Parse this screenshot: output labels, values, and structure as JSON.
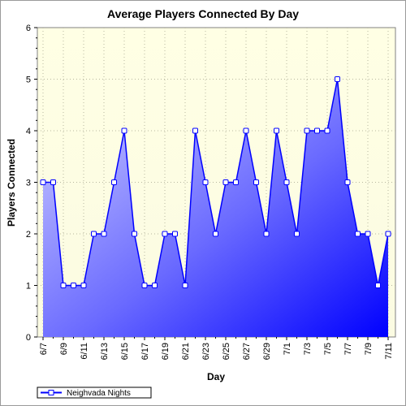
{
  "chart_data": {
    "type": "area",
    "title": "Average Players Connected By Day",
    "xlabel": "Day",
    "ylabel": "Players Connected",
    "ylim": [
      0,
      6
    ],
    "yticks": [
      0,
      1,
      2,
      3,
      4,
      5,
      6
    ],
    "grid": true,
    "legend_position": "bottom-left",
    "x_labels": [
      "6/7",
      "6/9",
      "6/11",
      "6/13",
      "6/15",
      "6/17",
      "6/19",
      "6/21",
      "6/23",
      "6/25",
      "6/27",
      "6/29",
      "7/1",
      "7/3",
      "7/5",
      "7/7",
      "7/9",
      "7/11"
    ],
    "series": [
      {
        "name": "Neighvada Nights",
        "x": [
          "6/7",
          "6/8",
          "6/9",
          "6/10",
          "6/11",
          "6/12",
          "6/13",
          "6/14",
          "6/15",
          "6/16",
          "6/17",
          "6/18",
          "6/19",
          "6/20",
          "6/21",
          "6/22",
          "6/23",
          "6/24",
          "6/25",
          "6/26",
          "6/27",
          "6/28",
          "6/29",
          "6/30",
          "7/1",
          "7/2",
          "7/3",
          "7/4",
          "7/5",
          "7/6",
          "7/7",
          "7/8",
          "7/9",
          "7/10",
          "7/11"
        ],
        "values": [
          3,
          3,
          1,
          1,
          1,
          2,
          2,
          3,
          4,
          2,
          1,
          1,
          2,
          2,
          1,
          4,
          3,
          2,
          3,
          3,
          4,
          3,
          2,
          4,
          3,
          2,
          4,
          4,
          4,
          5,
          3,
          2,
          2,
          1,
          2
        ],
        "color": "#0000ff"
      }
    ],
    "colors": {
      "plot_background_top": "#ffffe6",
      "plot_background_bottom": "#fafae0",
      "area_light": "#c8c8ff",
      "area_dark": "#0000ff",
      "line": "#0000ff"
    }
  }
}
